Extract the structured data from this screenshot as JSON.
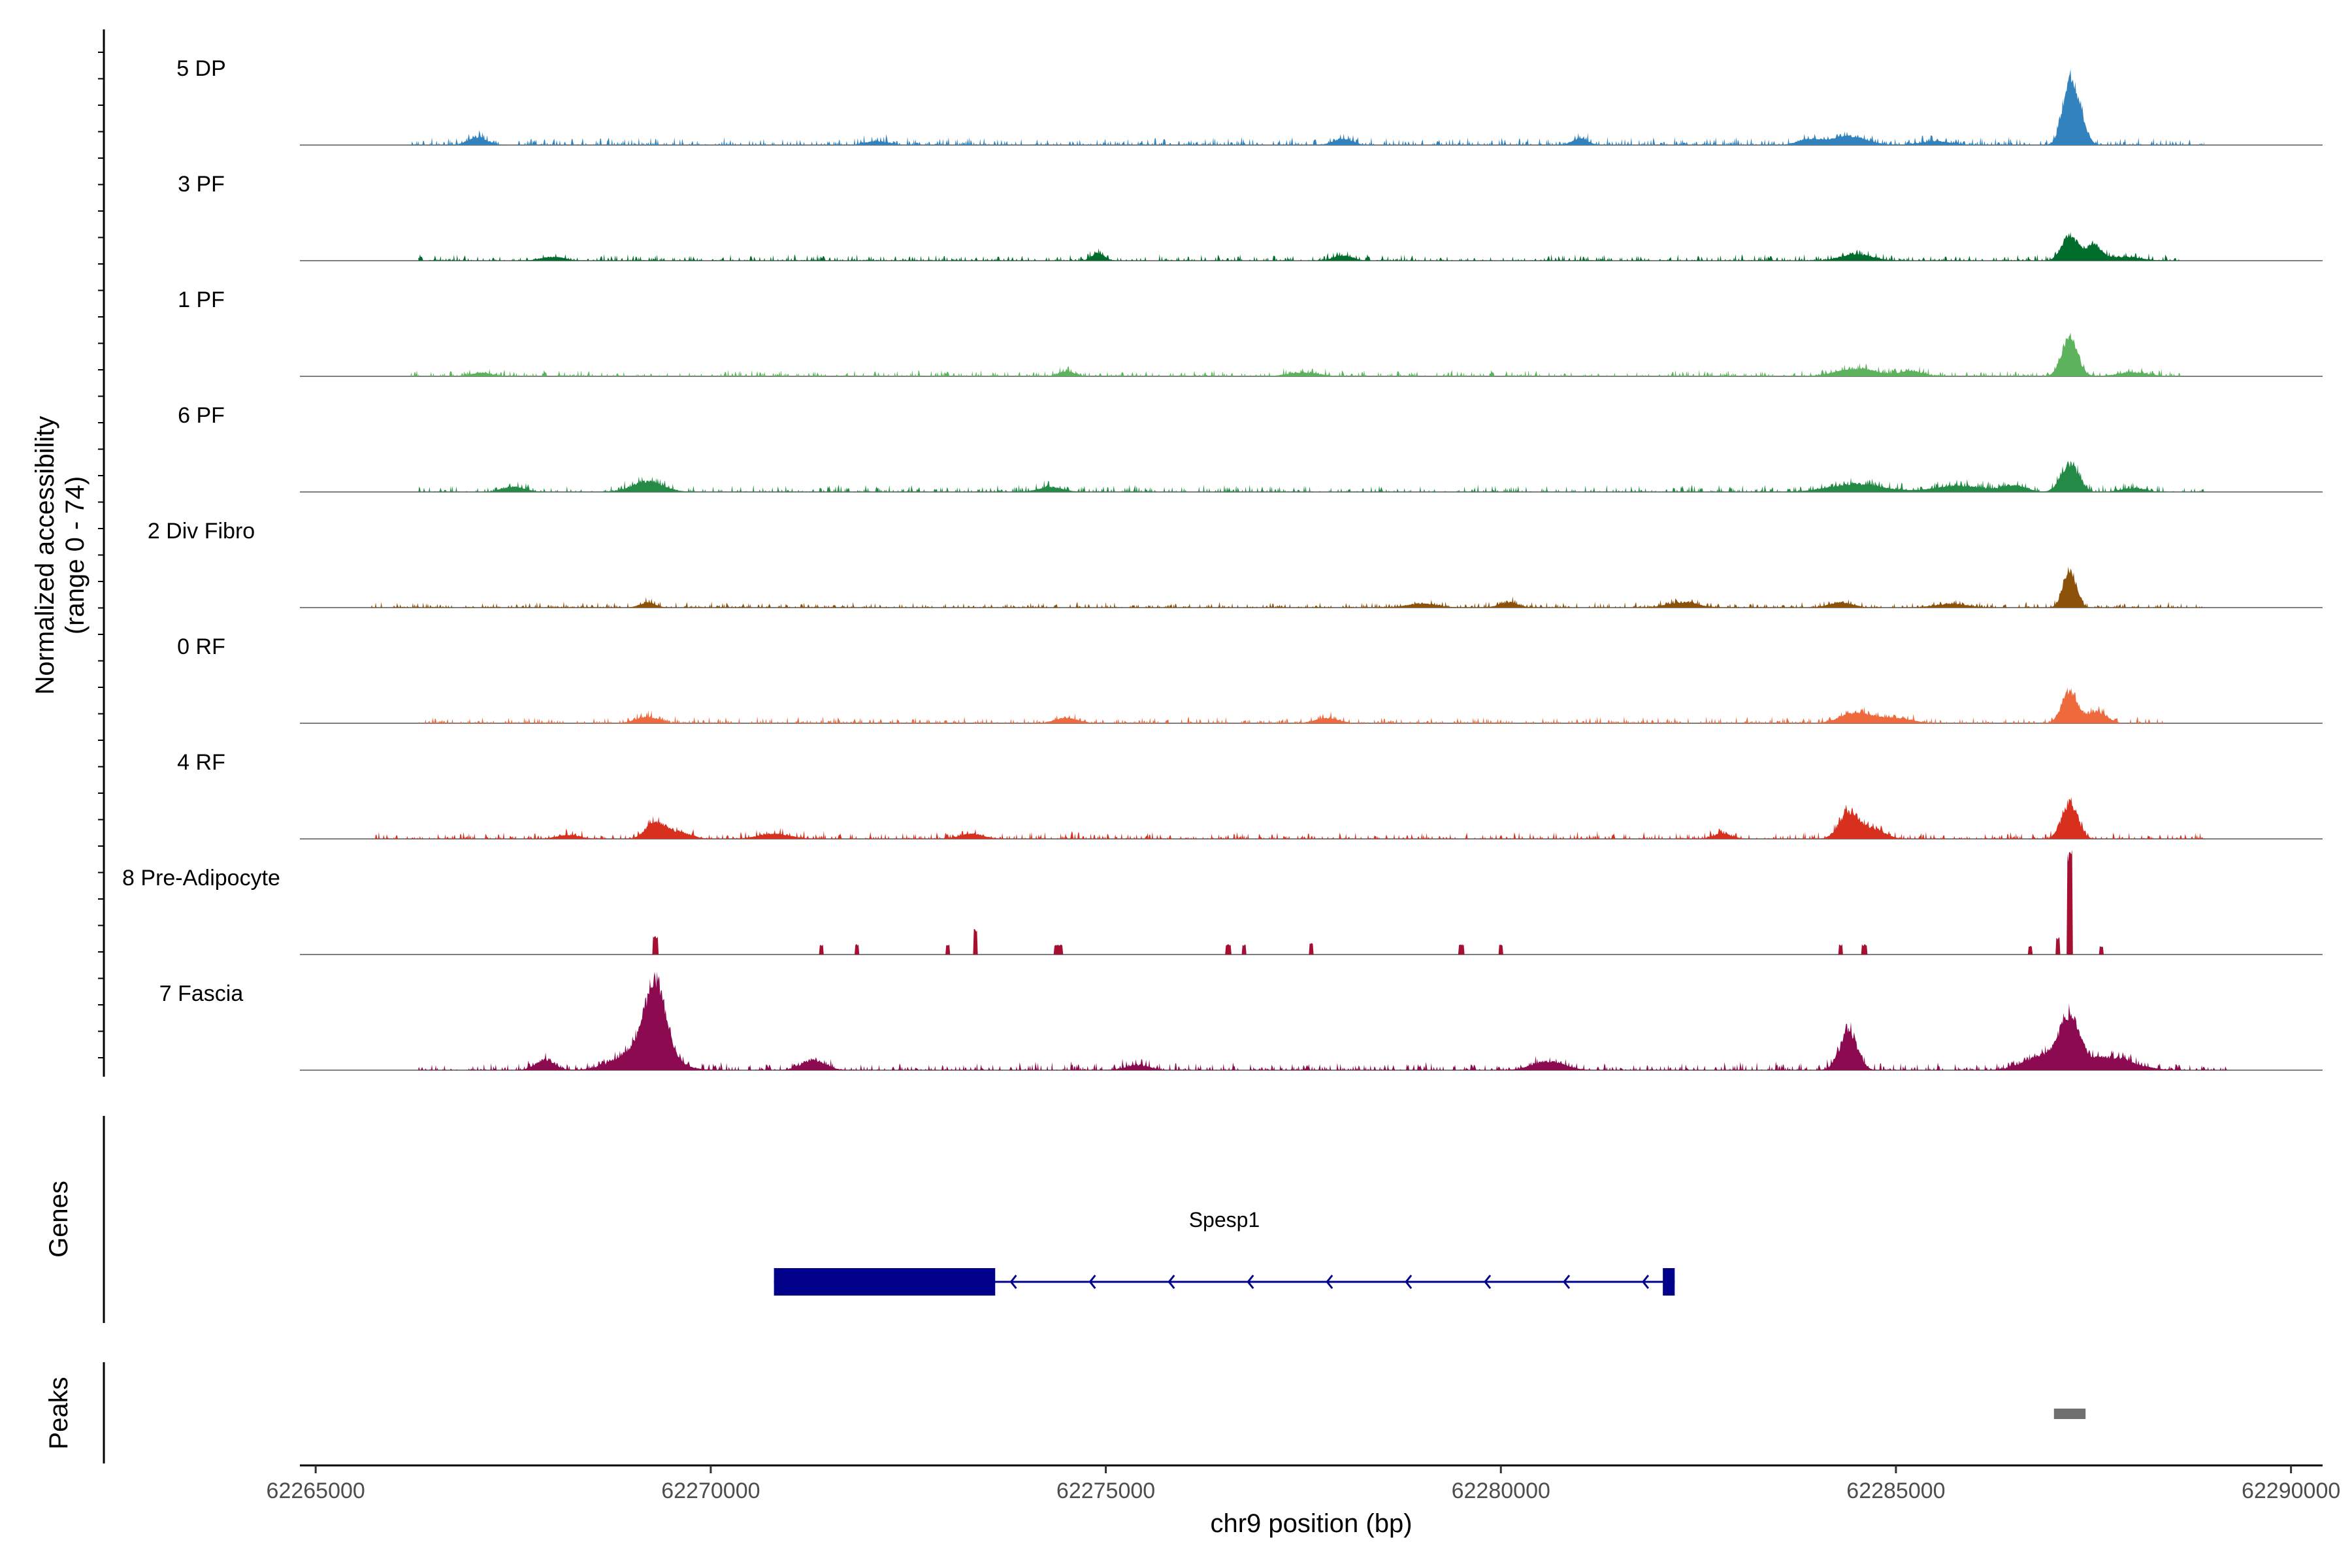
{
  "chart_data": {
    "type": "area",
    "subtype": "genome-coverage-tracks",
    "ylabel": "Normalized accessibility",
    "ylabel_range": "(range 0 - 74)",
    "ylim": [
      0,
      74
    ],
    "xlabel": "chr9 position (bp)",
    "xlim": [
      62264800,
      62290400
    ],
    "x_ticks": [
      62265000,
      62270000,
      62275000,
      62280000,
      62285000,
      62290000
    ],
    "tracks": [
      {
        "name": "5 DP",
        "color": "#3182bd",
        "data_start": 62266200,
        "data_end": 62288900,
        "noise": 4.5,
        "peaks": [
          [
            62287200,
            50,
            90
          ],
          [
            62287350,
            14,
            80
          ],
          [
            62267050,
            6,
            120
          ],
          [
            62284400,
            7,
            220
          ],
          [
            62283900,
            4,
            150
          ],
          [
            62278000,
            5,
            120
          ],
          [
            62272100,
            3,
            150
          ],
          [
            62281000,
            5,
            100
          ],
          [
            62285500,
            3,
            200
          ]
        ]
      },
      {
        "name": "3 PF",
        "color": "#006d2c",
        "data_start": 62266300,
        "data_end": 62288600,
        "noise": 3.5,
        "peaks": [
          [
            62287200,
            20,
            100
          ],
          [
            62287500,
            12,
            100
          ],
          [
            62274900,
            6,
            80
          ],
          [
            62284500,
            5,
            200
          ],
          [
            62287900,
            3,
            200
          ],
          [
            62268000,
            3,
            150
          ],
          [
            62278000,
            4,
            120
          ]
        ]
      },
      {
        "name": "1 PF",
        "color": "#5db35d",
        "data_start": 62266200,
        "data_end": 62288600,
        "noise": 3.5,
        "peaks": [
          [
            62287200,
            30,
            100
          ],
          [
            62284500,
            6,
            250
          ],
          [
            62285200,
            4,
            150
          ],
          [
            62267100,
            3,
            120
          ],
          [
            62274500,
            4,
            100
          ],
          [
            62277500,
            3,
            200
          ],
          [
            62288000,
            3,
            200
          ]
        ]
      },
      {
        "name": "6 PF",
        "color": "#238b45",
        "data_start": 62266300,
        "data_end": 62288900,
        "noise": 4,
        "peaks": [
          [
            62287200,
            22,
            110
          ],
          [
            62269200,
            8,
            200
          ],
          [
            62284500,
            6,
            350
          ],
          [
            62285800,
            5,
            300
          ],
          [
            62267500,
            4,
            150
          ],
          [
            62274300,
            4,
            150
          ],
          [
            62286500,
            5,
            150
          ],
          [
            62288000,
            3,
            150
          ]
        ]
      },
      {
        "name": "2 Div Fibro",
        "color": "#8c510a",
        "data_start": 62265700,
        "data_end": 62288900,
        "noise": 3,
        "peaks": [
          [
            62287200,
            30,
            80
          ],
          [
            62269200,
            4,
            100
          ],
          [
            62279000,
            3,
            200
          ],
          [
            62280100,
            4,
            120
          ],
          [
            62282300,
            4,
            200
          ],
          [
            62284300,
            4,
            150
          ],
          [
            62285700,
            3,
            200
          ]
        ]
      },
      {
        "name": "0 RF",
        "color": "#ee6a3d",
        "data_start": 62266300,
        "data_end": 62288400,
        "noise": 3.5,
        "peaks": [
          [
            62287200,
            25,
            100
          ],
          [
            62287550,
            9,
            120
          ],
          [
            62284500,
            8,
            200
          ],
          [
            62285000,
            4,
            200
          ],
          [
            62269200,
            5,
            150
          ],
          [
            62274500,
            4,
            150
          ],
          [
            62277800,
            4,
            150
          ]
        ]
      },
      {
        "name": "4 RF",
        "color": "#d7301f",
        "data_start": 62265700,
        "data_end": 62288900,
        "noise": 4,
        "peaks": [
          [
            62287200,
            28,
            100
          ],
          [
            62284400,
            20,
            120
          ],
          [
            62284700,
            8,
            150
          ],
          [
            62269300,
            13,
            120
          ],
          [
            62269600,
            5,
            150
          ],
          [
            62270800,
            4,
            200
          ],
          [
            62273300,
            4,
            150
          ],
          [
            62282800,
            4,
            120
          ],
          [
            62268200,
            3,
            150
          ]
        ]
      },
      {
        "name": "8 Pre-Adipocyte",
        "color": "#a50f32",
        "data_start": 62265700,
        "data_end": 62288900,
        "noise": 0,
        "blocky": true,
        "peaks": [
          [
            62287200,
            74,
            60
          ],
          [
            62287050,
            12,
            40
          ],
          [
            62269300,
            13,
            60
          ],
          [
            62273350,
            18,
            50
          ],
          [
            62273000,
            7,
            50
          ],
          [
            62271400,
            7,
            50
          ],
          [
            62271850,
            7,
            50
          ],
          [
            62274400,
            7,
            100
          ],
          [
            62276550,
            7,
            60
          ],
          [
            62276750,
            7,
            40
          ],
          [
            62277600,
            8,
            40
          ],
          [
            62279500,
            7,
            60
          ],
          [
            62280000,
            7,
            40
          ],
          [
            62284300,
            7,
            50
          ],
          [
            62284600,
            7,
            60
          ],
          [
            62286700,
            6,
            50
          ],
          [
            62287600,
            6,
            40
          ]
        ]
      },
      {
        "name": "7 Fascia",
        "color": "#8b0a50",
        "data_start": 62266300,
        "data_end": 62289200,
        "noise": 4.5,
        "peaks": [
          [
            62269300,
            55,
            130
          ],
          [
            62269150,
            18,
            300
          ],
          [
            62284400,
            30,
            110
          ],
          [
            62287200,
            35,
            120
          ],
          [
            62286900,
            12,
            250
          ],
          [
            62287700,
            10,
            300
          ],
          [
            62267900,
            8,
            120
          ],
          [
            62271300,
            8,
            150
          ],
          [
            62280600,
            7,
            200
          ],
          [
            62275400,
            4,
            150
          ]
        ]
      }
    ],
    "genes": {
      "label": "Genes",
      "items": [
        {
          "name": "Spesp1",
          "start": 62270800,
          "end": 62282200,
          "strand": "-",
          "color": "#00008b",
          "exons": [
            [
              62270800,
              62273600
            ],
            [
              62282050,
              62282200
            ]
          ]
        }
      ]
    },
    "peaks_track": {
      "label": "Peaks",
      "color": "#707070",
      "items": [
        [
          62287000,
          62287400
        ]
      ]
    }
  }
}
